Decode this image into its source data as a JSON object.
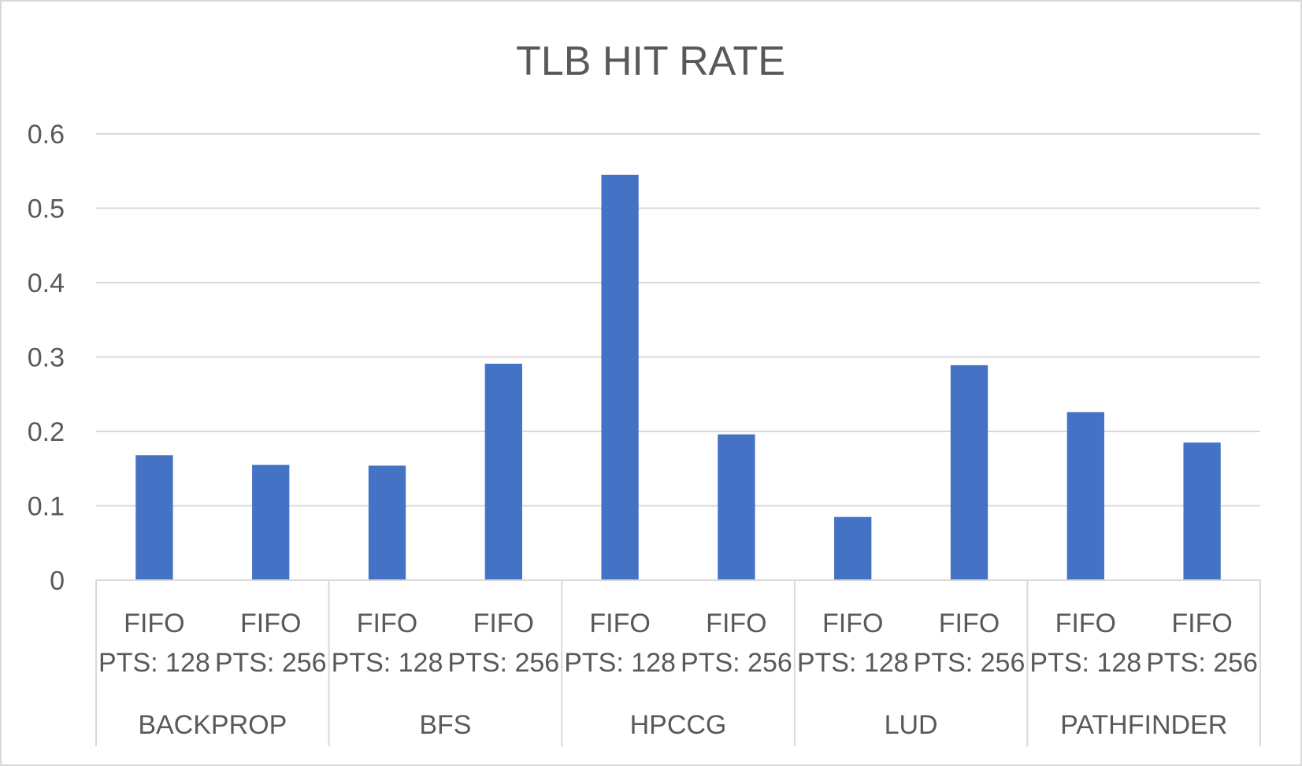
{
  "chart_data": {
    "type": "bar",
    "title": "TLB HIT RATE",
    "xlabel": "",
    "ylabel": "",
    "ylim": [
      0,
      0.6
    ],
    "yticks": [
      "0",
      "0.1",
      "0.2",
      "0.3",
      "0.4",
      "0.5",
      "0.6"
    ],
    "grid": true,
    "legend": "none",
    "bar_color": "#4472c4",
    "groups": [
      {
        "name": "BACKPROP",
        "categories": [
          {
            "line1": "FIFO",
            "line2": "PTS: 128"
          },
          {
            "line1": "FIFO",
            "line2": "PTS: 256"
          }
        ],
        "values": [
          0.168,
          0.155
        ]
      },
      {
        "name": "BFS",
        "categories": [
          {
            "line1": "FIFO",
            "line2": "PTS: 128"
          },
          {
            "line1": "FIFO",
            "line2": "PTS: 256"
          }
        ],
        "values": [
          0.154,
          0.291
        ]
      },
      {
        "name": "HPCCG",
        "categories": [
          {
            "line1": "FIFO",
            "line2": "PTS: 128"
          },
          {
            "line1": "FIFO",
            "line2": "PTS: 256"
          }
        ],
        "values": [
          0.545,
          0.196
        ]
      },
      {
        "name": "LUD",
        "categories": [
          {
            "line1": "FIFO",
            "line2": "PTS: 128"
          },
          {
            "line1": "FIFO",
            "line2": "PTS: 256"
          }
        ],
        "values": [
          0.085,
          0.289
        ]
      },
      {
        "name": "PATHFINDER",
        "categories": [
          {
            "line1": "FIFO",
            "line2": "PTS: 128"
          },
          {
            "line1": "FIFO",
            "line2": "PTS: 256"
          }
        ],
        "values": [
          0.226,
          0.185
        ]
      }
    ]
  }
}
